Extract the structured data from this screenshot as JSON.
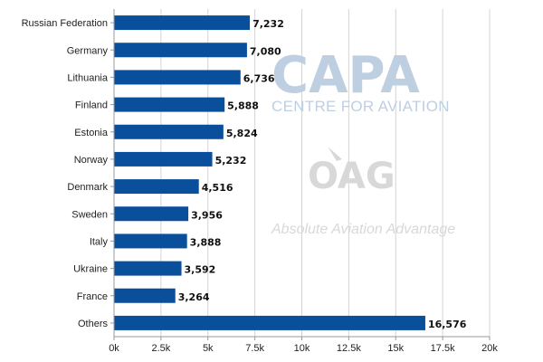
{
  "chart_data": {
    "type": "bar",
    "orientation": "horizontal",
    "categories": [
      "Russian Federation",
      "Germany",
      "Lithuania",
      "Finland",
      "Estonia",
      "Norway",
      "Denmark",
      "Sweden",
      "Italy",
      "Ukraine",
      "France",
      "Others"
    ],
    "values": [
      7232,
      7080,
      6736,
      5888,
      5824,
      5232,
      4516,
      3956,
      3888,
      3592,
      3264,
      16576
    ],
    "value_labels": [
      "7,232",
      "7,080",
      "6,736",
      "5,888",
      "5,824",
      "5,232",
      "4,516",
      "3,956",
      "3,888",
      "3,592",
      "3,264",
      "16,576"
    ],
    "xlim": [
      0,
      20000
    ],
    "xticks": [
      0,
      2500,
      5000,
      7500,
      10000,
      12500,
      15000,
      17500,
      20000
    ],
    "xtick_labels": [
      "0k",
      "2.5k",
      "5k",
      "7.5k",
      "10k",
      "12.5k",
      "15k",
      "17.5k",
      "20k"
    ],
    "title": "",
    "xlabel": "",
    "ylabel": "",
    "grid": "vertical",
    "legend": "none",
    "bar_color": "#0a4f9c"
  },
  "watermark": {
    "capa_logo": "CAPA",
    "capa_subtitle": "CENTRE FOR AVIATION",
    "oag_logo": "OAG",
    "oag_tagline": "Absolute Aviation Advantage",
    "capa_color": "#bfcfe2",
    "oag_color": "#d8d8d8"
  }
}
